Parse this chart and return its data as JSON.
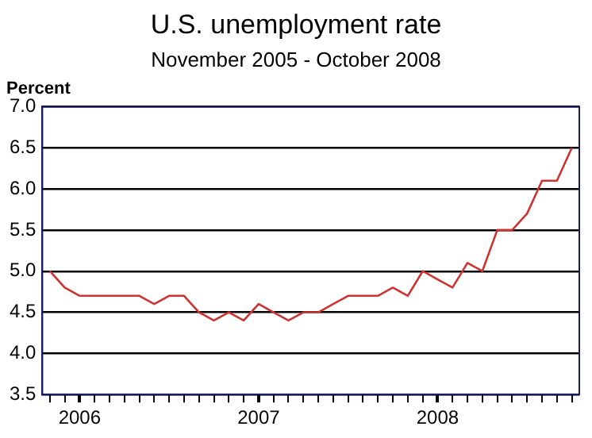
{
  "chart_data": {
    "type": "line",
    "title": "U.S. unemployment rate",
    "subtitle": "November 2005 - October 2008",
    "ylabel": "Percent",
    "categories": [
      null,
      null,
      "2006",
      null,
      null,
      null,
      null,
      null,
      null,
      null,
      null,
      null,
      null,
      null,
      "2007",
      null,
      null,
      null,
      null,
      null,
      null,
      null,
      null,
      null,
      null,
      null,
      "2008",
      null,
      null,
      null,
      null,
      null,
      null,
      null,
      null,
      null
    ],
    "series": [
      {
        "color": "#cc3333",
        "values": [
          5.0,
          4.8,
          4.7,
          4.7,
          4.7,
          4.7,
          4.7,
          4.6,
          4.7,
          4.7,
          4.5,
          4.4,
          4.5,
          4.4,
          4.6,
          4.5,
          4.4,
          4.5,
          4.5,
          4.6,
          4.7,
          4.7,
          4.7,
          4.8,
          4.7,
          5.0,
          4.9,
          4.8,
          5.1,
          5.0,
          5.5,
          5.5,
          5.7,
          6.1,
          6.1,
          6.5
        ]
      }
    ],
    "ylim": [
      3.5,
      7.0
    ],
    "yticks": [
      {
        "value": 3.5,
        "label": "3.5"
      },
      {
        "value": 4,
        "label": "4.0"
      },
      {
        "value": 4.5,
        "label": "4.5"
      },
      {
        "value": 5,
        "label": "5.0"
      },
      {
        "value": 5.5,
        "label": "5.5"
      },
      {
        "value": 6,
        "label": "6.0"
      },
      {
        "value": 6.5,
        "label": "6.5"
      },
      {
        "value": 7,
        "label": "7.0"
      }
    ],
    "grid": "y",
    "legend": false,
    "marker": "none",
    "line_style": "solid"
  }
}
